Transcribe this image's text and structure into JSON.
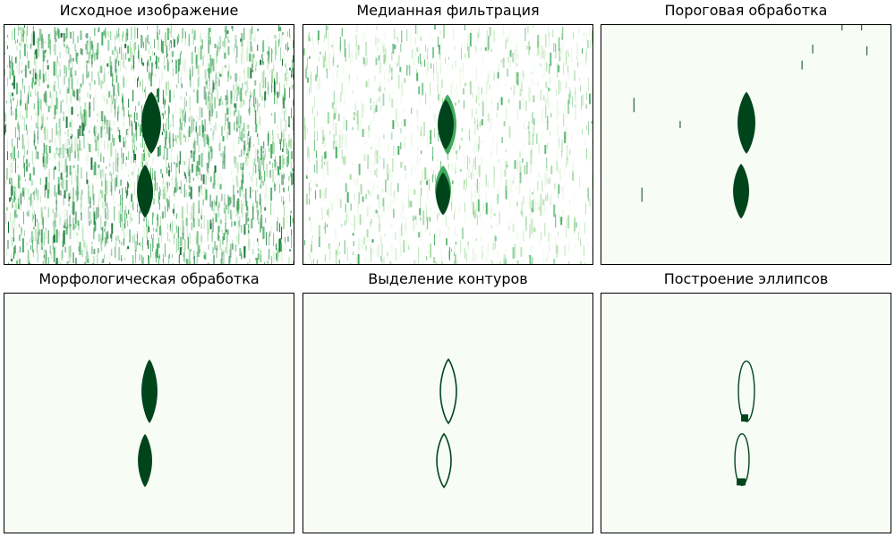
{
  "colors": {
    "background": "#f7fcf5",
    "ink": "#00441b",
    "noise_dark": "#0b6b2c",
    "noise_mid": "#41ab5d",
    "noise_light": "#a1d99b",
    "noise_pale": "#e5f5e0"
  },
  "panels": [
    {
      "title": "Исходное изображение",
      "kind": "noise_raw"
    },
    {
      "title": "Медианная фильтрация",
      "kind": "noise_median"
    },
    {
      "title": "Пороговая обработка",
      "kind": "threshold"
    },
    {
      "title": "Морфологическая обработка",
      "kind": "morph"
    },
    {
      "title": "Выделение контуров",
      "kind": "contours"
    },
    {
      "title": "Построение эллипсов",
      "kind": "ellipses"
    }
  ]
}
